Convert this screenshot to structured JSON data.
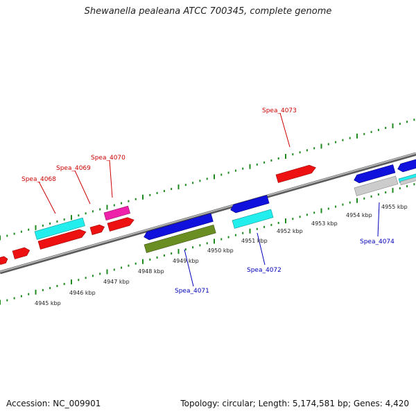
{
  "title": "Shewanella pealeana ATCC 700345, complete genome",
  "accession_text": "Accession: NC_009901",
  "summary_text": "Topology: circular; Length: 5,174,581 bp; Genes: 4,420",
  "colors": {
    "backbone": "#8c8c8c",
    "ticks": "#1f8a1f",
    "red_gene": "#ee1111",
    "blue_gene": "#1111dd",
    "cyan_gene": "#22eeee",
    "magenta_gene": "#ee22aa",
    "olive_gene": "#6b8e23",
    "grey_gene": "#cccccc",
    "label_red": "#cc0000",
    "label_blue": "#0000bb"
  },
  "position_labels": [
    {
      "text": "4945 kbp"
    },
    {
      "text": "4946 kbp"
    },
    {
      "text": "4947 kbp"
    },
    {
      "text": "4948 kbp"
    },
    {
      "text": "4949 kbp"
    },
    {
      "text": "4950 kbp"
    },
    {
      "text": "4951 kbp"
    },
    {
      "text": "4952 kbp"
    },
    {
      "text": "4953 kbp"
    },
    {
      "text": "4954 kbp"
    },
    {
      "text": "4955 kbp"
    }
  ],
  "gene_labels": [
    {
      "text": "Spea_4068",
      "color": "#cc0000"
    },
    {
      "text": "Spea_4069",
      "color": "#cc0000"
    },
    {
      "text": "Spea_4070",
      "color": "#cc0000"
    },
    {
      "text": "Spea_4073",
      "color": "#cc0000"
    },
    {
      "text": "Spea_4071",
      "color": "#0000bb"
    },
    {
      "text": "Spea_4072",
      "color": "#0000bb"
    },
    {
      "text": "Spea_4074",
      "color": "#0000bb"
    }
  ]
}
